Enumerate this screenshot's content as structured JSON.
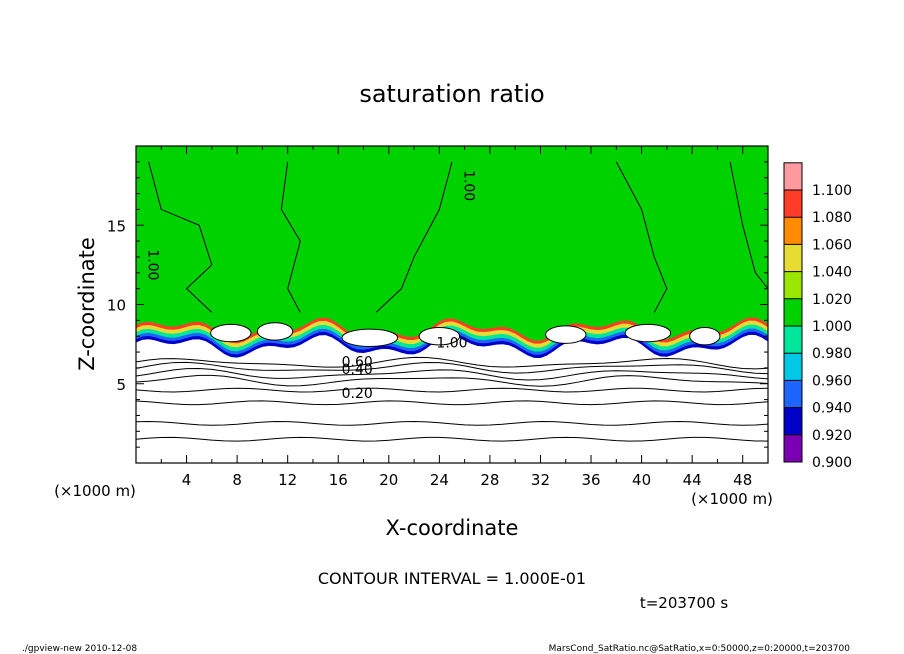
{
  "chart_data": {
    "type": "heatmap",
    "title": "saturation ratio",
    "xlabel": "X-coordinate",
    "ylabel": "Z-coordinate",
    "x_unit": "(×1000 m)",
    "z_unit": "(×1000 m)",
    "x_ticks": [
      "4",
      "8",
      "12",
      "16",
      "20",
      "24",
      "28",
      "32",
      "36",
      "40",
      "44",
      "48"
    ],
    "z_ticks": [
      "5",
      "10",
      "15"
    ],
    "xlim": [
      0,
      50
    ],
    "zlim": [
      0,
      20
    ],
    "contour_interval_label": "CONTOUR INTERVAL = 1.000E-01",
    "time_label": "t=203700 s",
    "contour_labels": [
      "0.20",
      "0.40",
      "0.60",
      "1.00",
      "1.00",
      "1.00"
    ],
    "colorbar": {
      "levels": [
        "0.900",
        "0.920",
        "0.940",
        "0.960",
        "0.980",
        "1.000",
        "1.020",
        "1.040",
        "1.060",
        "1.080",
        "1.100"
      ],
      "colors": [
        "#7b00b4",
        "#0000c8",
        "#1e64ff",
        "#00c8e6",
        "#00e69b",
        "#00d200",
        "#9be600",
        "#e6dc32",
        "#ff8c00",
        "#ff3c28",
        "#ff9ba0"
      ]
    },
    "field_summary": {
      "background_color": "#00d200",
      "lower_region_color": "#ffffff",
      "subsaturated_contours_z": [
        1.5,
        2.5,
        3.8,
        4.6,
        5.2,
        5.6,
        6.0,
        6.3
      ],
      "cloud_layer_z": [
        7,
        9
      ]
    }
  },
  "footer": {
    "left": "./gpview-new   2010-12-08",
    "right": "MarsCond_SatRatio.nc@SatRatio,x=0:50000,z=0:20000,t=203700"
  }
}
